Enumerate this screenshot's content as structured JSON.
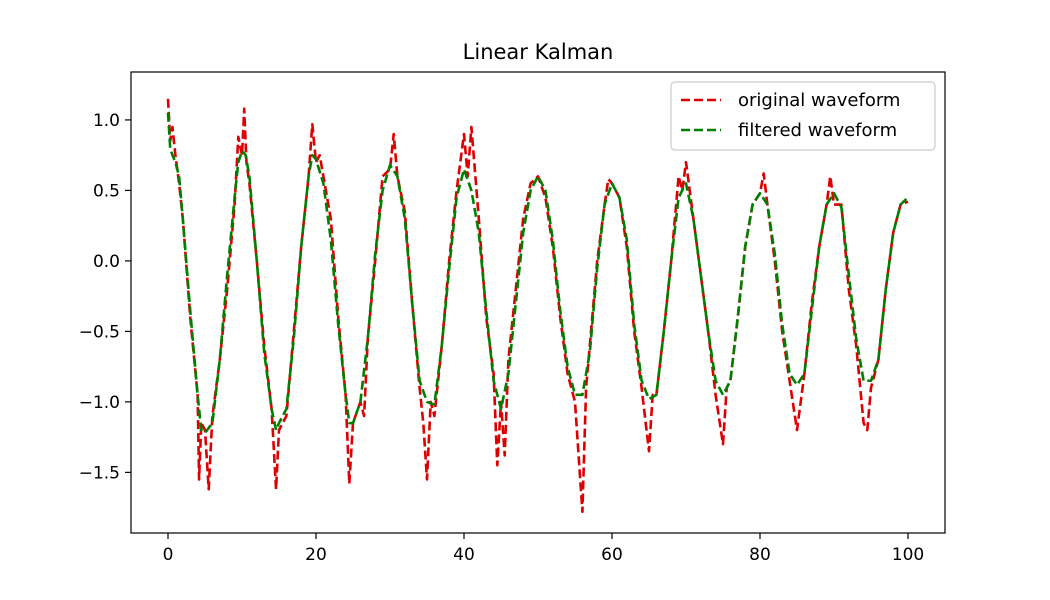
{
  "chart_data": {
    "type": "line",
    "title": "Linear Kalman",
    "xlabel": "",
    "ylabel": "",
    "xlim": [
      -5,
      105
    ],
    "ylim": [
      -1.93,
      1.34
    ],
    "x_ticks": [
      0,
      20,
      40,
      60,
      80,
      100
    ],
    "y_ticks": [
      -1.5,
      -1.0,
      -0.5,
      0.0,
      0.5,
      1.0
    ],
    "y_tick_labels": [
      "−1.5",
      "−1.0",
      "−0.5",
      "0.0",
      "0.5",
      "1.0"
    ],
    "grid": false,
    "legend_position": "top-right",
    "legend": [
      {
        "label": "original waveform",
        "color": "#dd0000"
      },
      {
        "label": "filtered waveform",
        "color": "#008000"
      }
    ],
    "series": [
      {
        "name": "original waveform",
        "color": "#dd0000",
        "style": "dashed",
        "points": [
          [
            0,
            1.15
          ],
          [
            0.3,
            0.85
          ],
          [
            0.6,
            0.95
          ],
          [
            1.0,
            0.75
          ],
          [
            1.5,
            0.55
          ],
          [
            2,
            0.3
          ],
          [
            3,
            -0.4
          ],
          [
            4,
            -0.95
          ],
          [
            4.2,
            -1.55
          ],
          [
            4.5,
            -1.15
          ],
          [
            5,
            -1.2
          ],
          [
            5.5,
            -1.62
          ],
          [
            6,
            -1.1
          ],
          [
            7,
            -0.7
          ],
          [
            8,
            -0.2
          ],
          [
            9,
            0.4
          ],
          [
            9.5,
            0.88
          ],
          [
            10,
            0.75
          ],
          [
            10.3,
            1.08
          ],
          [
            10.6,
            0.7
          ],
          [
            11,
            0.55
          ],
          [
            12,
            0.0
          ],
          [
            13,
            -0.6
          ],
          [
            14,
            -1.05
          ],
          [
            14.6,
            -1.62
          ],
          [
            15,
            -1.2
          ],
          [
            16,
            -1.1
          ],
          [
            17,
            -0.5
          ],
          [
            18,
            0.1
          ],
          [
            19,
            0.6
          ],
          [
            19.5,
            0.97
          ],
          [
            20,
            0.7
          ],
          [
            20.5,
            0.75
          ],
          [
            21,
            0.6
          ],
          [
            22,
            0.3
          ],
          [
            23,
            -0.4
          ],
          [
            24,
            -0.95
          ],
          [
            24.5,
            -1.58
          ],
          [
            25,
            -1.15
          ],
          [
            26,
            -1.0
          ],
          [
            26.5,
            -1.1
          ],
          [
            27,
            -0.55
          ],
          [
            28,
            0.0
          ],
          [
            29,
            0.6
          ],
          [
            30,
            0.65
          ],
          [
            30.5,
            0.9
          ],
          [
            31,
            0.6
          ],
          [
            32,
            0.35
          ],
          [
            33,
            -0.3
          ],
          [
            34,
            -0.9
          ],
          [
            34.5,
            -1.15
          ],
          [
            35,
            -1.55
          ],
          [
            35.5,
            -1.0
          ],
          [
            36,
            -1.1
          ],
          [
            37,
            -0.6
          ],
          [
            38,
            0.0
          ],
          [
            39,
            0.5
          ],
          [
            40,
            0.9
          ],
          [
            40.5,
            0.6
          ],
          [
            41,
            0.95
          ],
          [
            42,
            0.3
          ],
          [
            43,
            -0.4
          ],
          [
            44,
            -0.8
          ],
          [
            44.5,
            -1.45
          ],
          [
            45,
            -1.0
          ],
          [
            45.5,
            -1.38
          ],
          [
            46,
            -0.7
          ],
          [
            47,
            -0.2
          ],
          [
            48,
            0.3
          ],
          [
            49,
            0.55
          ],
          [
            50,
            0.6
          ],
          [
            51,
            0.45
          ],
          [
            52,
            0.1
          ],
          [
            53,
            -0.4
          ],
          [
            54,
            -0.8
          ],
          [
            55,
            -1.0
          ],
          [
            56,
            -1.78
          ],
          [
            56.5,
            -0.9
          ],
          [
            57,
            -0.6
          ],
          [
            58,
            0.0
          ],
          [
            59,
            0.4
          ],
          [
            59.5,
            0.58
          ],
          [
            60,
            0.55
          ],
          [
            61,
            0.45
          ],
          [
            62,
            0.1
          ],
          [
            63,
            -0.5
          ],
          [
            64,
            -0.9
          ],
          [
            65,
            -1.35
          ],
          [
            65.5,
            -0.95
          ],
          [
            66,
            -0.95
          ],
          [
            67,
            -0.5
          ],
          [
            68,
            0.0
          ],
          [
            69,
            0.6
          ],
          [
            69.5,
            0.5
          ],
          [
            70,
            0.7
          ],
          [
            71,
            0.3
          ],
          [
            72,
            -0.1
          ],
          [
            73,
            -0.5
          ],
          [
            74,
            -0.95
          ],
          [
            75,
            -1.3
          ],
          [
            75.5,
            -0.9
          ],
          [
            76,
            -0.85
          ],
          [
            77,
            -0.4
          ],
          [
            78,
            0.1
          ],
          [
            79,
            0.4
          ],
          [
            80,
            0.48
          ],
          [
            80.5,
            0.62
          ],
          [
            81,
            0.4
          ],
          [
            82,
            0.0
          ],
          [
            83,
            -0.5
          ],
          [
            84,
            -0.85
          ],
          [
            85,
            -1.2
          ],
          [
            86,
            -0.8
          ],
          [
            87,
            -0.3
          ],
          [
            88,
            0.1
          ],
          [
            89,
            0.4
          ],
          [
            89.5,
            0.6
          ],
          [
            90,
            0.4
          ],
          [
            91,
            0.4
          ],
          [
            92,
            -0.2
          ],
          [
            93,
            -0.6
          ],
          [
            94,
            -1.15
          ],
          [
            94.5,
            -1.2
          ],
          [
            95,
            -0.9
          ],
          [
            96,
            -0.7
          ],
          [
            97,
            -0.2
          ],
          [
            98,
            0.2
          ],
          [
            99,
            0.4
          ],
          [
            100,
            0.42
          ]
        ]
      },
      {
        "name": "filtered waveform",
        "color": "#008000",
        "style": "dashed",
        "points": [
          [
            0,
            1.05
          ],
          [
            0.3,
            0.8
          ],
          [
            0.6,
            0.75
          ],
          [
            1.0,
            0.7
          ],
          [
            1.5,
            0.6
          ],
          [
            2,
            0.3
          ],
          [
            3,
            -0.35
          ],
          [
            4,
            -0.95
          ],
          [
            4.5,
            -1.2
          ],
          [
            5,
            -1.22
          ],
          [
            6,
            -1.15
          ],
          [
            7,
            -0.7
          ],
          [
            8,
            -0.1
          ],
          [
            9,
            0.45
          ],
          [
            9.5,
            0.7
          ],
          [
            10,
            0.78
          ],
          [
            10.5,
            0.75
          ],
          [
            11,
            0.6
          ],
          [
            12,
            0.0
          ],
          [
            13,
            -0.65
          ],
          [
            14,
            -1.05
          ],
          [
            14.6,
            -1.2
          ],
          [
            15,
            -1.15
          ],
          [
            16,
            -1.05
          ],
          [
            17,
            -0.55
          ],
          [
            18,
            0.1
          ],
          [
            19,
            0.6
          ],
          [
            19.5,
            0.75
          ],
          [
            20,
            0.72
          ],
          [
            21,
            0.55
          ],
          [
            22,
            0.15
          ],
          [
            23,
            -0.45
          ],
          [
            24,
            -0.95
          ],
          [
            24.5,
            -1.15
          ],
          [
            25,
            -1.15
          ],
          [
            26,
            -1.0
          ],
          [
            27,
            -0.55
          ],
          [
            28,
            0.05
          ],
          [
            29,
            0.5
          ],
          [
            30,
            0.68
          ],
          [
            31,
            0.6
          ],
          [
            32,
            0.3
          ],
          [
            33,
            -0.3
          ],
          [
            34,
            -0.85
          ],
          [
            35,
            -1.0
          ],
          [
            36,
            -1.02
          ],
          [
            37,
            -0.6
          ],
          [
            38,
            -0.05
          ],
          [
            39,
            0.45
          ],
          [
            40,
            0.65
          ],
          [
            41,
            0.5
          ],
          [
            42,
            0.2
          ],
          [
            43,
            -0.35
          ],
          [
            44,
            -0.85
          ],
          [
            45,
            -1.05
          ],
          [
            46,
            -0.8
          ],
          [
            47,
            -0.3
          ],
          [
            48,
            0.2
          ],
          [
            49,
            0.5
          ],
          [
            50,
            0.6
          ],
          [
            51,
            0.5
          ],
          [
            52,
            0.15
          ],
          [
            53,
            -0.35
          ],
          [
            54,
            -0.75
          ],
          [
            55,
            -0.95
          ],
          [
            56,
            -0.95
          ],
          [
            57,
            -0.65
          ],
          [
            58,
            -0.05
          ],
          [
            59,
            0.4
          ],
          [
            60,
            0.55
          ],
          [
            61,
            0.45
          ],
          [
            62,
            0.15
          ],
          [
            63,
            -0.45
          ],
          [
            64,
            -0.85
          ],
          [
            65,
            -0.98
          ],
          [
            66,
            -0.95
          ],
          [
            67,
            -0.5
          ],
          [
            68,
            0.0
          ],
          [
            69,
            0.45
          ],
          [
            70,
            0.55
          ],
          [
            71,
            0.3
          ],
          [
            72,
            -0.1
          ],
          [
            73,
            -0.5
          ],
          [
            74,
            -0.85
          ],
          [
            75,
            -0.95
          ],
          [
            76,
            -0.85
          ],
          [
            77,
            -0.4
          ],
          [
            78,
            0.1
          ],
          [
            79,
            0.4
          ],
          [
            80,
            0.48
          ],
          [
            81,
            0.4
          ],
          [
            82,
            0.05
          ],
          [
            83,
            -0.45
          ],
          [
            84,
            -0.8
          ],
          [
            85,
            -0.88
          ],
          [
            86,
            -0.8
          ],
          [
            87,
            -0.35
          ],
          [
            88,
            0.1
          ],
          [
            89,
            0.4
          ],
          [
            90,
            0.48
          ],
          [
            91,
            0.38
          ],
          [
            92,
            -0.1
          ],
          [
            93,
            -0.55
          ],
          [
            94,
            -0.85
          ],
          [
            95,
            -0.85
          ],
          [
            96,
            -0.7
          ],
          [
            97,
            -0.2
          ],
          [
            98,
            0.2
          ],
          [
            99,
            0.4
          ],
          [
            100,
            0.45
          ]
        ]
      }
    ]
  }
}
